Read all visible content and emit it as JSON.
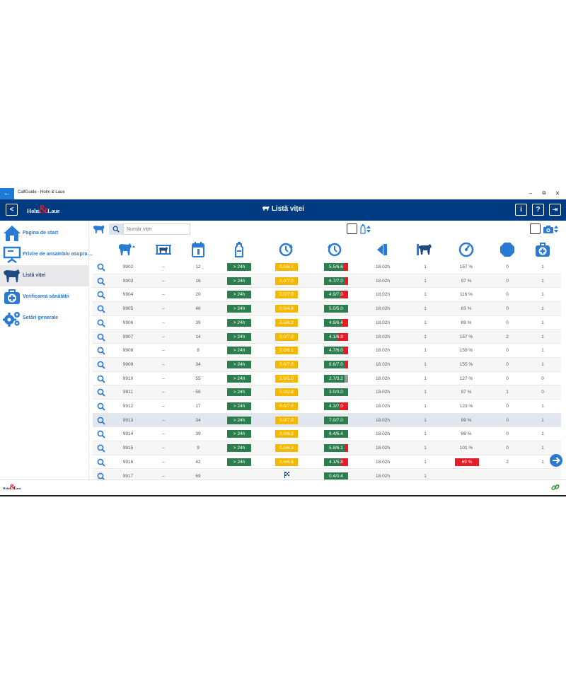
{
  "window": {
    "title": "CalfGuide - Holm & Laue",
    "back_glyph": "←",
    "min_glyph": "–",
    "restore_glyph": "⧉",
    "close_glyph": "✕"
  },
  "header": {
    "back_glyph": "<",
    "title": "Listă viței",
    "info_label": "i",
    "help_label": "?",
    "logout_glyph": "⇥",
    "brand_left": "Holm",
    "brand_amp": "&",
    "brand_right": "Laue"
  },
  "sidebar": {
    "items": [
      {
        "label": "Pagina de start",
        "icon": "home-icon"
      },
      {
        "label": "Privire de ansamblu asupra ...",
        "icon": "presentation-icon"
      },
      {
        "label": "Listă viței",
        "icon": "calf-icon"
      },
      {
        "label": "Verificarea sănătății",
        "icon": "medical-kit-icon"
      },
      {
        "label": "Setări generale",
        "icon": "gears-icon"
      }
    ],
    "active_index": 2
  },
  "toolbar": {
    "search_placeholder": "Număr viței"
  },
  "columns": [
    {
      "icon": "calf-number-icon",
      "sort": "ascending"
    },
    {
      "icon": "calf-group-icon"
    },
    {
      "icon": "calendar-icon"
    },
    {
      "icon": "milk-bottle-icon"
    },
    {
      "icon": "clock-forward-icon"
    },
    {
      "icon": "clock-back-icon"
    },
    {
      "icon": "feeder-station-icon"
    },
    {
      "icon": "calf-feeding-icon"
    },
    {
      "icon": "speedometer-icon"
    },
    {
      "icon": "stop-icon"
    },
    {
      "icon": "health-kit-icon"
    }
  ],
  "rows": [
    {
      "id": "9902",
      "group": "–",
      "age": "12",
      "last": "> 24h",
      "rest": "0.0/6.7",
      "cons": "5.5/6.6",
      "cons_frac": 0.83,
      "cons_style": "red",
      "time": "18.02h",
      "station": "1",
      "speed": "157 %",
      "speed_alert": false,
      "stops": "0",
      "health": "1"
    },
    {
      "id": "9903",
      "group": "–",
      "age": "16",
      "last": "> 24h",
      "rest": "0.0/7.0",
      "cons": "6.7/7.0",
      "cons_frac": 0.96,
      "cons_style": "red",
      "time": "18.02h",
      "station": "1",
      "speed": "97 %",
      "speed_alert": false,
      "stops": "0",
      "health": "1"
    },
    {
      "id": "9904",
      "group": "–",
      "age": "20",
      "last": "> 24h",
      "rest": "0.0/7.0",
      "cons": "4.9/7.0",
      "cons_frac": 0.7,
      "cons_style": "red",
      "time": "18.02h",
      "station": "1",
      "speed": "116 %",
      "speed_alert": false,
      "stops": "0",
      "health": "1"
    },
    {
      "id": "9905",
      "group": "–",
      "age": "46",
      "last": "> 24h",
      "rest": "0.0/4.8",
      "cons": "5.0/5.0",
      "cons_frac": 1.0,
      "cons_style": "red",
      "time": "18.02h",
      "station": "1",
      "speed": "83 %",
      "speed_alert": false,
      "stops": "0",
      "health": "1"
    },
    {
      "id": "9906",
      "group": "–",
      "age": "39",
      "last": "> 24h",
      "rest": "0.0/6.2",
      "cons": "4.9/6.4",
      "cons_frac": 0.77,
      "cons_style": "red",
      "time": "18.02h",
      "station": "1",
      "speed": "89 %",
      "speed_alert": false,
      "stops": "0",
      "health": "1"
    },
    {
      "id": "9907",
      "group": "–",
      "age": "14",
      "last": "> 24h",
      "rest": "0.0/7.0",
      "cons": "4.1/6.9",
      "cons_frac": 0.59,
      "cons_style": "red",
      "time": "18.02h",
      "station": "1",
      "speed": "157 %",
      "speed_alert": false,
      "stops": "2",
      "health": "1"
    },
    {
      "id": "9908",
      "group": "–",
      "age": "8",
      "last": "> 24h",
      "rest": "0.0/6.1",
      "cons": "4.7/6.0",
      "cons_frac": 0.78,
      "cons_style": "red",
      "time": "18.02h",
      "station": "1",
      "speed": "159 %",
      "speed_alert": false,
      "stops": "0",
      "health": "1"
    },
    {
      "id": "9909",
      "group": "–",
      "age": "34",
      "last": "> 24h",
      "rest": "0.0/7.0",
      "cons": "6.6/7.0",
      "cons_frac": 0.94,
      "cons_style": "red",
      "time": "18.02h",
      "station": "1",
      "speed": "155 %",
      "speed_alert": false,
      "stops": "0",
      "health": "1"
    },
    {
      "id": "9910",
      "group": "–",
      "age": "55",
      "last": "> 24h",
      "rest": "0.0/3.0",
      "cons": "2.7/3.2",
      "cons_frac": 0.84,
      "cons_style": "gray",
      "time": "18.02h",
      "station": "1",
      "speed": "127 %",
      "speed_alert": false,
      "stops": "0",
      "health": "0"
    },
    {
      "id": "9911",
      "group": "–",
      "age": "56",
      "last": "> 24h",
      "rest": "0.0/2.8",
      "cons": "3.0/3.0",
      "cons_frac": 1.0,
      "cons_style": "red",
      "time": "18.02h",
      "station": "1",
      "speed": "97 %",
      "speed_alert": false,
      "stops": "1",
      "health": "0"
    },
    {
      "id": "9912",
      "group": "–",
      "age": "17",
      "last": "> 24h",
      "rest": "0.0/7.0",
      "cons": "4.3/7.0",
      "cons_frac": 0.61,
      "cons_style": "red",
      "time": "18.02h",
      "station": "1",
      "speed": "123 %",
      "speed_alert": false,
      "stops": "0",
      "health": "1"
    },
    {
      "id": "9913",
      "group": "–",
      "age": "34",
      "last": "> 24h",
      "rest": "0.0/7.0",
      "cons": "7.0/7.0",
      "cons_frac": 1.0,
      "cons_style": "red",
      "time": "18.02h",
      "station": "1",
      "speed": "99 %",
      "speed_alert": false,
      "stops": "0",
      "health": "1"
    },
    {
      "id": "9914",
      "group": "–",
      "age": "39",
      "last": "> 24h",
      "rest": "0.0/6.2",
      "cons": "6.4/6.4",
      "cons_frac": 1.0,
      "cons_style": "red",
      "time": "18.02h",
      "station": "1",
      "speed": "86 %",
      "speed_alert": false,
      "stops": "0",
      "health": "1"
    },
    {
      "id": "9915",
      "group": "–",
      "age": "9",
      "last": "> 24h",
      "rest": "0.0/6.3",
      "cons": "5.8/6.1",
      "cons_frac": 0.95,
      "cons_style": "red",
      "time": "18.02h",
      "station": "1",
      "speed": "101 %",
      "speed_alert": false,
      "stops": "0",
      "health": "1"
    },
    {
      "id": "9916",
      "group": "–",
      "age": "42",
      "last": "> 24h",
      "rest": "0.0/5.6",
      "cons": "4.1/5.8",
      "cons_frac": 0.71,
      "cons_style": "red",
      "time": "18.02h",
      "station": "1",
      "speed": "69 %",
      "speed_alert": true,
      "stops": "2",
      "health": "1"
    },
    {
      "id": "9917",
      "group": "–",
      "age": "69",
      "last": "",
      "rest": "",
      "rest_icon": "finish-flag-icon",
      "cons": "0.4/0.4",
      "cons_frac": 1.0,
      "cons_style": "red",
      "time": "18.02h",
      "station": "1",
      "speed": "",
      "speed_alert": false,
      "stops": "",
      "health": ""
    }
  ],
  "selected_row_index": 11,
  "colors": {
    "header_blue": "#003a80",
    "accent_blue": "#2a7ad3",
    "green": "#2e7d4f",
    "yellow": "#f5b800",
    "red": "#e41e26"
  }
}
